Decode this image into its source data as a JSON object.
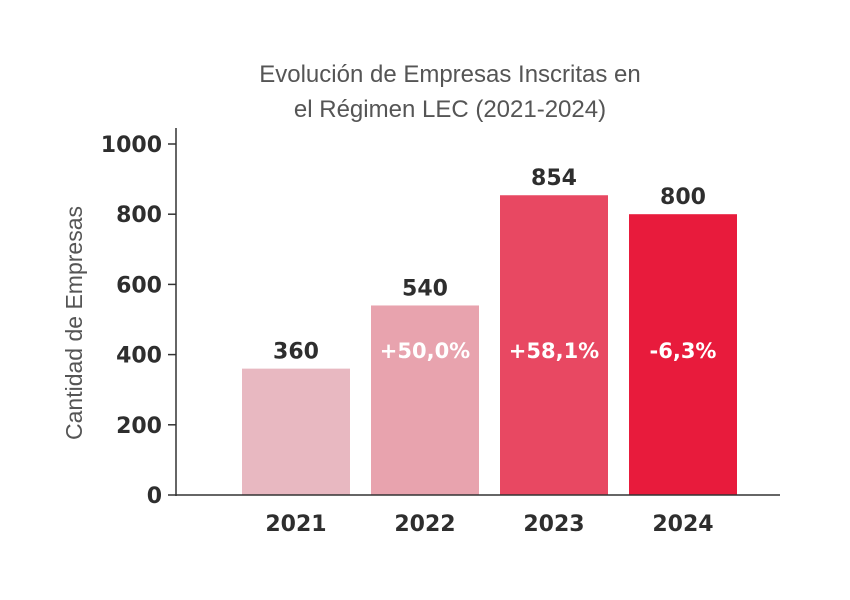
{
  "chart_data": {
    "type": "bar",
    "title_lines": [
      "Evolución de Empresas Inscritas en",
      "el Régimen LEC (2021-2024)"
    ],
    "xlabel": "",
    "ylabel": "Cantidad de Empresas",
    "ylim": [
      0,
      1000
    ],
    "yticks": [
      0,
      200,
      400,
      600,
      800,
      1000
    ],
    "categories": [
      "2021",
      "2022",
      "2023",
      "2024"
    ],
    "values": [
      360,
      540,
      854,
      800
    ],
    "value_labels": [
      "360",
      "540",
      "854",
      "800"
    ],
    "change_labels": [
      "",
      "+50,0%",
      "+58,1%",
      "-6,3%"
    ],
    "colors": [
      "#e8b8c1",
      "#e8a3ae",
      "#e84862",
      "#e81b3c"
    ],
    "grid": false,
    "legend": "none"
  }
}
